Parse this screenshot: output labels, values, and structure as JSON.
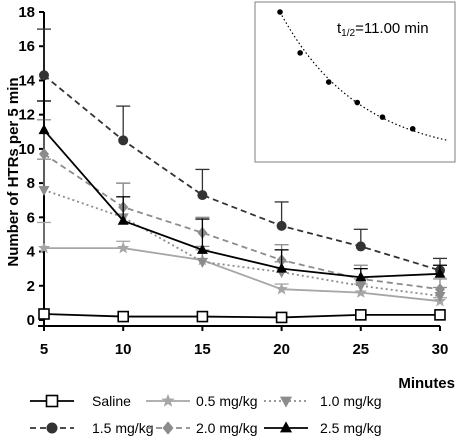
{
  "chart_data": {
    "type": "line",
    "ylabel": "Number of HTRs per 5 min",
    "xlabel": "Minutes",
    "x": [
      5,
      10,
      15,
      20,
      25,
      30
    ],
    "xlim": [
      5,
      30
    ],
    "ylim": [
      0,
      18
    ],
    "yticks": [
      0,
      2,
      4,
      6,
      8,
      10,
      12,
      14,
      16,
      18
    ],
    "xticks": [
      5,
      10,
      15,
      20,
      25,
      30
    ],
    "series": [
      {
        "name": "Saline",
        "color": "#000000",
        "dash": "solid",
        "marker": "open-square",
        "values": [
          0.35,
          0.2,
          0.2,
          0.15,
          0.3,
          0.3
        ],
        "err": [
          0.0,
          0.0,
          0.0,
          0.0,
          0.0,
          0.0
        ]
      },
      {
        "name": "0.5 mg/kg",
        "color": "#a6a6a6",
        "dash": "solid",
        "marker": "star",
        "values": [
          4.2,
          4.2,
          3.5,
          1.8,
          1.6,
          1.1
        ],
        "err": [
          1.5,
          0.4,
          0.6,
          0.3,
          0.5,
          0.2
        ]
      },
      {
        "name": "1.0 mg/kg",
        "color": "#8c8c8c",
        "dash": "dotted",
        "marker": "triangle-down",
        "values": [
          7.6,
          6.0,
          3.4,
          2.8,
          2.0,
          1.4
        ],
        "err": [
          1.8,
          2.0,
          0.9,
          0.6,
          0.4,
          0.5
        ]
      },
      {
        "name": "1.5 mg/kg",
        "color": "#333333",
        "dash": "dashed",
        "marker": "circle",
        "values": [
          14.3,
          10.5,
          7.3,
          5.5,
          4.3,
          2.9
        ],
        "err": [
          2.7,
          2.0,
          1.5,
          1.4,
          1.0,
          0.7
        ]
      },
      {
        "name": "2.0 mg/kg",
        "color": "#8c8c8c",
        "dash": "dashed",
        "marker": "diamond",
        "values": [
          9.7,
          6.6,
          5.1,
          3.5,
          2.4,
          1.8
        ],
        "err": [
          2.0,
          1.4,
          0.9,
          0.9,
          0.8,
          0.6
        ]
      },
      {
        "name": "2.5 mg/kg",
        "color": "#000000",
        "dash": "solid",
        "marker": "triangle-up",
        "values": [
          11.1,
          5.8,
          4.1,
          3.0,
          2.5,
          2.7
        ],
        "err": [
          1.7,
          1.4,
          1.8,
          1.1,
          0.5,
          0.5
        ]
      }
    ],
    "inset": {
      "label": "t1/2=11.00 min",
      "points": [
        [
          0.0,
          1.0
        ],
        [
          0.12,
          0.72
        ],
        [
          0.29,
          0.52
        ],
        [
          0.46,
          0.38
        ],
        [
          0.61,
          0.28
        ],
        [
          0.79,
          0.2
        ]
      ],
      "curve_end": 1.0,
      "curve_end_value": 0.12
    },
    "grid": false
  }
}
